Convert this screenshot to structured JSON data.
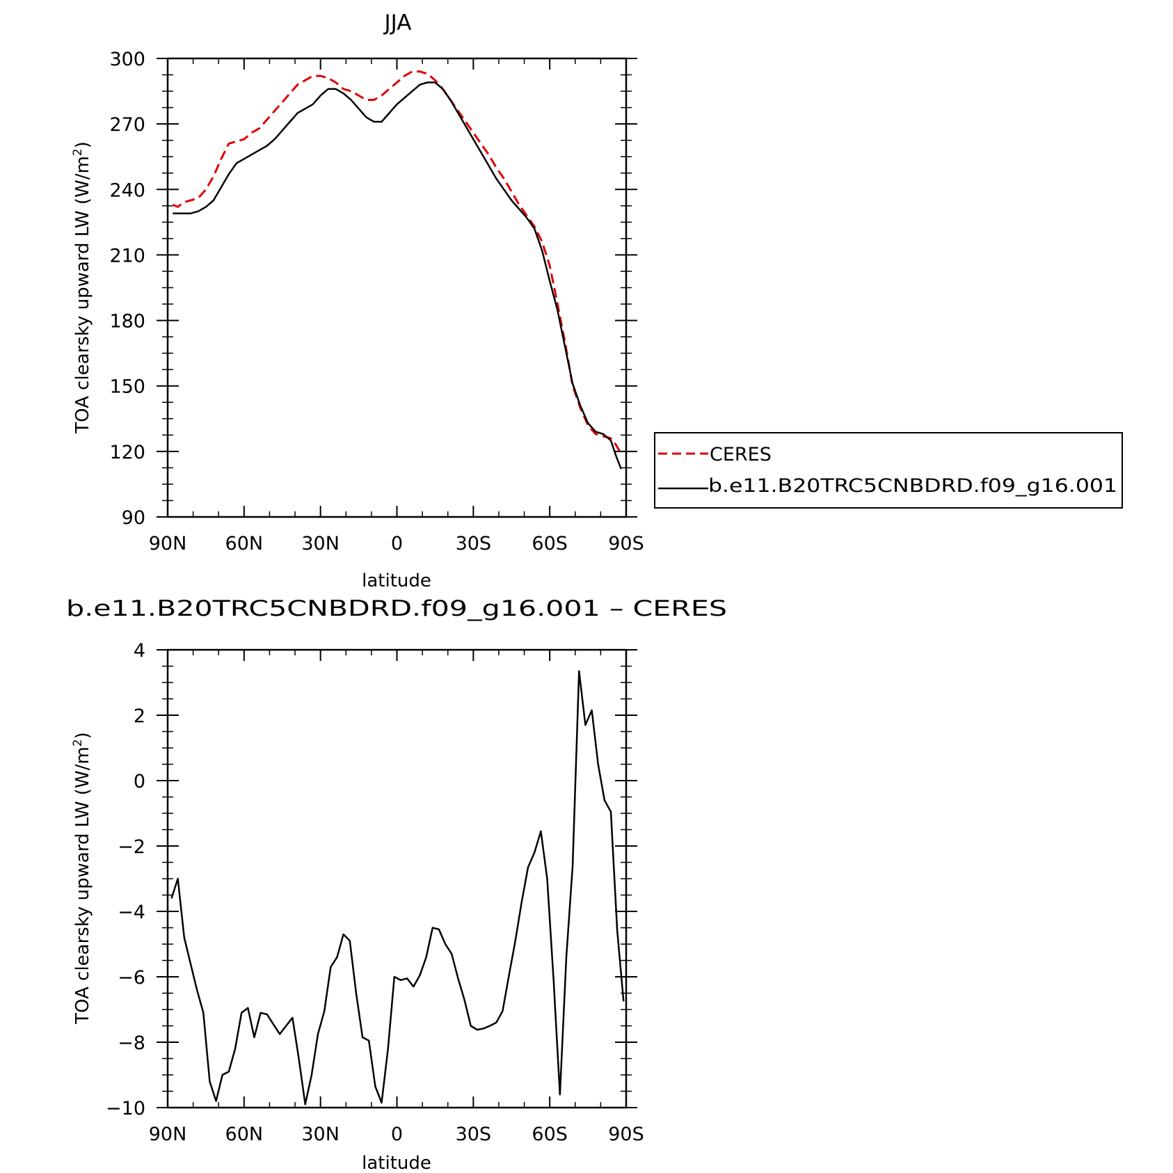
{
  "colors": {
    "ceres": "#e00000",
    "model": "#000000",
    "axes": "#000000",
    "background": "#ffffff"
  },
  "chart_data": [
    {
      "type": "line",
      "title": "JJA",
      "xlabel": "latitude",
      "ylabel_main": "TOA clearsky upward LW (W/m",
      "ylabel_sup": "2",
      "ylabel_end": ")",
      "xlim": [
        90,
        -90
      ],
      "ylim": [
        90,
        300
      ],
      "xticks": [
        90,
        60,
        30,
        0,
        -30,
        -60,
        -90
      ],
      "xtick_labels": [
        "90N",
        "60N",
        "30N",
        "0",
        "30S",
        "60S",
        "90S"
      ],
      "yticks": [
        90,
        120,
        150,
        180,
        210,
        240,
        270,
        300
      ],
      "ytick_labels": [
        "90",
        "120",
        "150",
        "180",
        "210",
        "240",
        "270",
        "300"
      ],
      "legend": {
        "placement": "right",
        "entries": [
          "CERES",
          "b.e11.B20TRC5CNBDRD.f09_g16.001"
        ]
      },
      "series": [
        {
          "name": "CERES",
          "style": "dashed",
          "x": [
            88,
            86,
            84,
            81,
            78,
            75,
            72,
            69,
            66,
            63,
            60,
            57,
            54,
            51,
            48,
            45,
            42,
            39,
            36,
            33,
            30,
            27,
            24,
            21,
            18,
            15,
            12,
            9,
            6,
            3,
            0,
            -3,
            -6,
            -9,
            -12,
            -15,
            -18,
            -21,
            -24,
            -27,
            -30,
            -33,
            -36,
            -39,
            -42,
            -45,
            -48,
            -51,
            -54,
            -57,
            -60,
            -63,
            -66,
            -69,
            -72,
            -75,
            -78,
            -81,
            -84,
            -86,
            -88
          ],
          "y": [
            233,
            232,
            234,
            235,
            236,
            240,
            246,
            254,
            261,
            262,
            263,
            266,
            268,
            272,
            276,
            280,
            284,
            288,
            290,
            292,
            292,
            291,
            289,
            286,
            285,
            283,
            281,
            281,
            283,
            286,
            289,
            292,
            294,
            294,
            293,
            290,
            286,
            281,
            276,
            271,
            266,
            261,
            256,
            250,
            245,
            239,
            233,
            228,
            223,
            216,
            205,
            188,
            170,
            150,
            140,
            132,
            128,
            127,
            126,
            123,
            119
          ]
        },
        {
          "name": "b.e11.B20TRC5CNBDRD.f09_g16.001",
          "style": "solid",
          "x": [
            88,
            86,
            84,
            81,
            78,
            75,
            72,
            69,
            66,
            63,
            60,
            57,
            54,
            51,
            48,
            45,
            42,
            39,
            36,
            33,
            30,
            27,
            24,
            21,
            18,
            15,
            12,
            9,
            6,
            3,
            0,
            -3,
            -6,
            -9,
            -12,
            -15,
            -18,
            -21,
            -24,
            -27,
            -30,
            -33,
            -36,
            -39,
            -42,
            -45,
            -48,
            -51,
            -54,
            -57,
            -60,
            -63,
            -66,
            -69,
            -72,
            -75,
            -78,
            -81,
            -84,
            -86,
            -88
          ],
          "y": [
            229,
            229,
            229,
            229,
            230,
            232,
            235,
            241,
            247,
            252,
            254,
            256,
            258,
            260,
            263,
            267,
            271,
            275,
            277,
            279,
            283,
            286,
            286,
            284,
            281,
            277,
            273,
            271,
            271,
            275,
            279,
            282,
            285,
            288,
            289,
            289,
            286,
            281,
            275,
            269,
            263,
            257,
            251,
            245,
            240,
            235,
            231,
            227,
            222,
            212,
            198,
            185,
            168,
            151,
            141,
            133,
            129,
            128,
            125,
            118,
            112
          ]
        }
      ]
    },
    {
      "type": "line",
      "title": "b.e11.B20TRC5CNBDRD.f09_g16.001 – CERES",
      "xlabel": "latitude",
      "ylabel_main": "TOA clearsky upward LW (W/m",
      "ylabel_sup": "2",
      "ylabel_end": ")",
      "xlim": [
        90,
        -90
      ],
      "ylim": [
        -10,
        4
      ],
      "xticks": [
        90,
        60,
        30,
        0,
        -30,
        -60,
        -90
      ],
      "xtick_labels": [
        "90N",
        "60N",
        "30N",
        "0",
        "30S",
        "60S",
        "90S"
      ],
      "yticks": [
        -10,
        -8,
        -6,
        -4,
        -2,
        0,
        2,
        4
      ],
      "ytick_labels": [
        "−10",
        "−8",
        "−6",
        "−4",
        "−2",
        "0",
        "2",
        "4"
      ],
      "series": [
        {
          "style": "solid",
          "x": [
            88.5,
            86,
            83.5,
            81,
            78.5,
            76,
            73.5,
            71,
            68.5,
            66,
            63.5,
            61,
            58.5,
            56,
            53.5,
            51,
            48.5,
            46,
            43.5,
            41,
            38.5,
            36,
            33.5,
            31,
            28.5,
            26,
            23.5,
            21,
            18.5,
            16,
            13.5,
            11,
            8.5,
            6,
            3.5,
            1,
            -1.5,
            -4,
            -6.5,
            -9,
            -11.5,
            -14,
            -16.5,
            -19,
            -21.5,
            -24,
            -26.5,
            -29,
            -31.5,
            -34,
            -36.5,
            -39,
            -41.5,
            -44,
            -46.5,
            -49,
            -51.5,
            -54,
            -56.5,
            -59,
            -61.5,
            -64,
            -66.5,
            -69,
            -71.5,
            -74,
            -76.5,
            -79,
            -81.5,
            -84,
            -86.5,
            -89
          ],
          "y": [
            -3.6,
            -3.0,
            -4.8,
            -5.6,
            -6.4,
            -7.1,
            -9.2,
            -9.8,
            -9.0,
            -8.9,
            -8.2,
            -7.1,
            -6.95,
            -7.85,
            -7.1,
            -7.15,
            -7.45,
            -7.75,
            -7.5,
            -7.25,
            -8.5,
            -9.9,
            -9.0,
            -7.75,
            -7.05,
            -5.7,
            -5.4,
            -4.7,
            -4.9,
            -6.5,
            -7.85,
            -7.95,
            -9.35,
            -9.85,
            -8.2,
            -6.0,
            -6.1,
            -6.05,
            -6.3,
            -5.95,
            -5.4,
            -4.5,
            -4.55,
            -5.0,
            -5.3,
            -6.05,
            -6.7,
            -7.5,
            -7.62,
            -7.58,
            -7.5,
            -7.4,
            -7.05,
            -5.95,
            -4.9,
            -3.7,
            -2.65,
            -2.2,
            -1.55,
            -3.0,
            -6.1,
            -9.6,
            -5.4,
            -2.6,
            3.35,
            1.7,
            2.15,
            0.5,
            -0.6,
            -0.95,
            -4.6,
            -6.75
          ]
        }
      ]
    }
  ]
}
